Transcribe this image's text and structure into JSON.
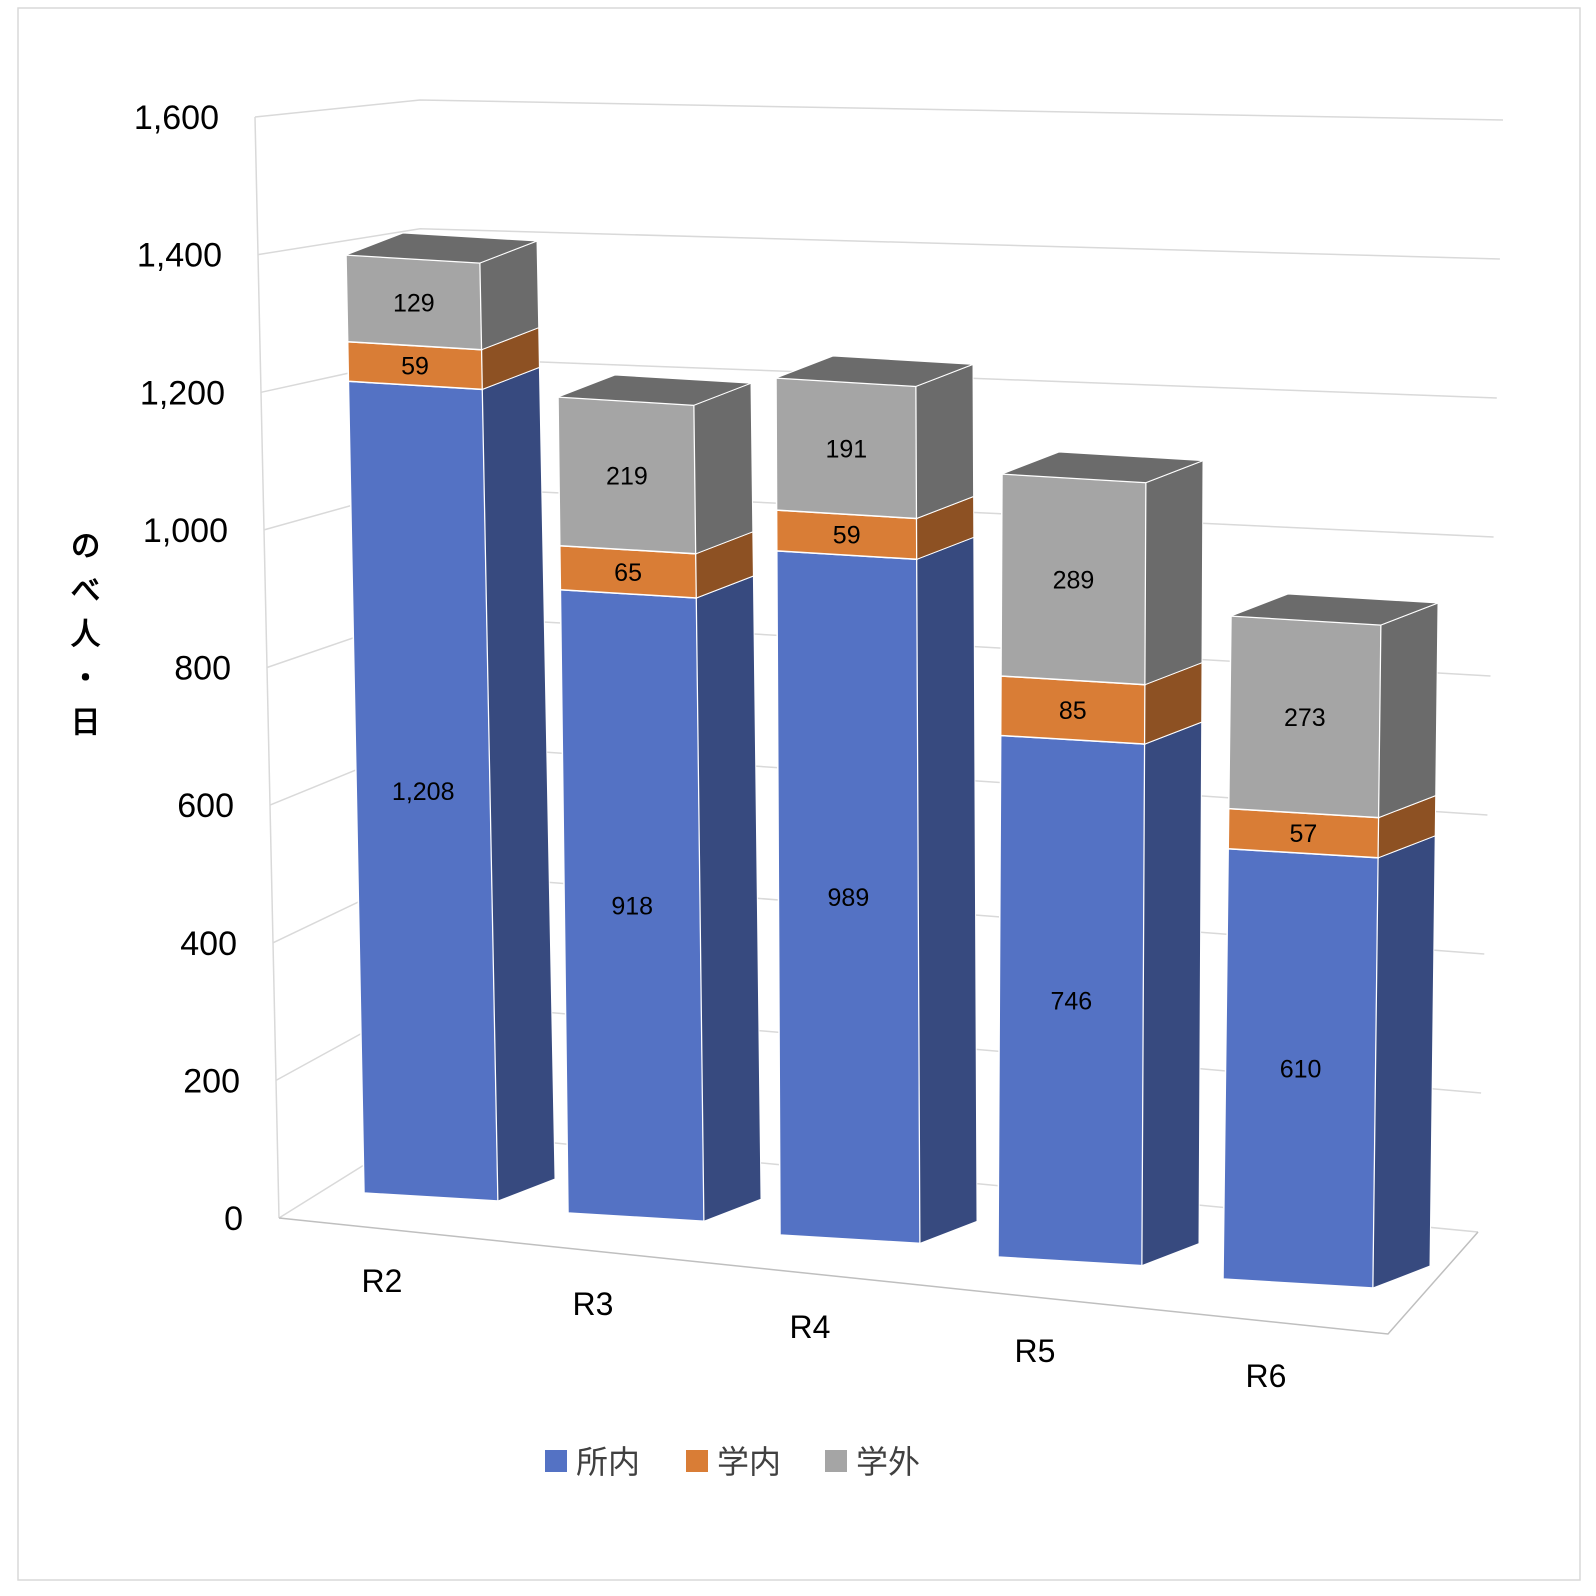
{
  "chart_data": {
    "type": "bar",
    "stacked": true,
    "three_d": true,
    "categories": [
      "R2",
      "R3",
      "R4",
      "R5",
      "R6"
    ],
    "series": [
      {
        "name": "所内",
        "values": [
          1208,
          918,
          989,
          746,
          610
        ],
        "color": "#5472C4"
      },
      {
        "name": "学内",
        "values": [
          59,
          65,
          59,
          85,
          57
        ],
        "color": "#D97D36"
      },
      {
        "name": "学外",
        "values": [
          129,
          219,
          191,
          289,
          273
        ],
        "color": "#A5A5A5"
      }
    ],
    "data_labels": [
      [
        "1,208",
        "918",
        "989",
        "746",
        "610"
      ],
      [
        "59",
        "65",
        "59",
        "85",
        "57"
      ],
      [
        "129",
        "219",
        "191",
        "289",
        "273"
      ]
    ],
    "ylabel": "のべ人・日",
    "ylim": [
      0,
      1600
    ],
    "yticks": [
      0,
      200,
      400,
      600,
      800,
      1000,
      1200,
      1400,
      1600
    ],
    "ytick_labels": [
      "0",
      "200",
      "400",
      "600",
      "800",
      "1,000",
      "1,200",
      "1,400",
      "1,600"
    ],
    "grid": true,
    "legend_position": "bottom"
  }
}
